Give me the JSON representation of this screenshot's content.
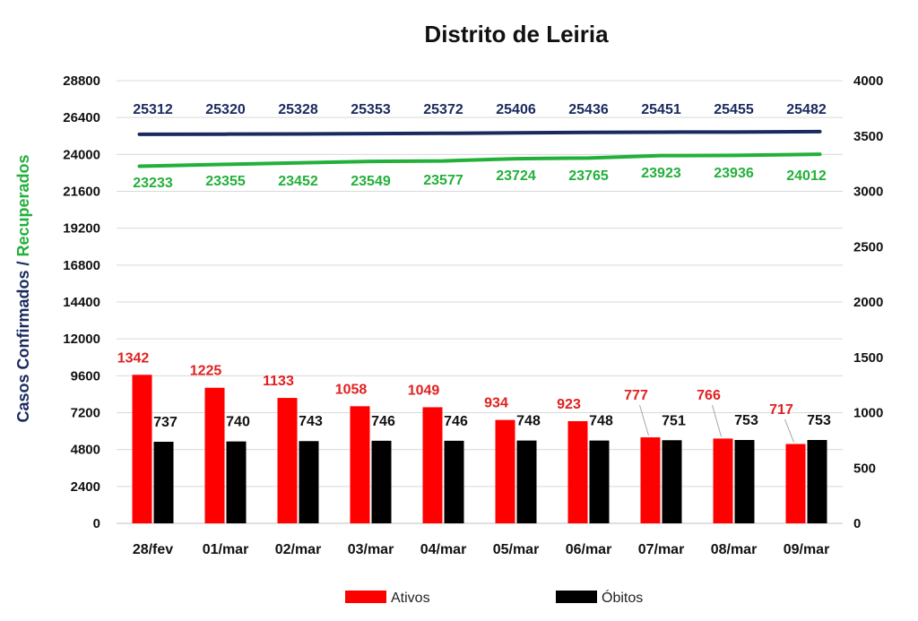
{
  "chart_data": {
    "type": "bar",
    "title": "Distrito de Leiria",
    "categories": [
      "28/fev",
      "01/mar",
      "02/mar",
      "03/mar",
      "04/mar",
      "05/mar",
      "06/mar",
      "07/mar",
      "08/mar",
      "09/mar"
    ],
    "ylabel_part1": "Casos Confirmados",
    "ylabel_sep": " / ",
    "ylabel_part2": "Recuperados",
    "ylim": [
      0,
      28800
    ],
    "y2lim": [
      0,
      4000
    ],
    "yticks": [
      0,
      2400,
      4800,
      7200,
      9600,
      12000,
      14400,
      16800,
      19200,
      21600,
      24000,
      26400,
      28800
    ],
    "y2ticks": [
      0,
      500,
      1000,
      1500,
      2000,
      2500,
      3000,
      3500,
      4000
    ],
    "grid": true,
    "legend_position": "bottom",
    "series": [
      {
        "name": "Ativos",
        "kind": "bar",
        "axis": "left",
        "color": "#ff0000",
        "label_color": "#e02020",
        "values": [
          1342,
          1225,
          1133,
          1058,
          1049,
          934,
          923,
          777,
          766,
          717
        ]
      },
      {
        "name": "Óbitos",
        "kind": "bar",
        "axis": "right",
        "color": "#000000",
        "label_color": "#111111",
        "values": [
          737,
          740,
          743,
          746,
          746,
          748,
          748,
          751,
          753,
          753
        ]
      },
      {
        "kind": "line",
        "axis": "left",
        "color": "#1a2a5e",
        "values": [
          25312,
          25320,
          25328,
          25353,
          25372,
          25406,
          25436,
          25451,
          25455,
          25482
        ]
      },
      {
        "kind": "line",
        "axis": "left",
        "color": "#22b03a",
        "values": [
          23233,
          23355,
          23452,
          23549,
          23577,
          23724,
          23765,
          23923,
          23936,
          24012
        ]
      }
    ],
    "colors": {
      "confirmados": "#1a2a5e",
      "recuperados": "#22b03a",
      "ativos": "#ff0000",
      "obitos": "#000000",
      "grid": "#d9d9d9"
    }
  }
}
